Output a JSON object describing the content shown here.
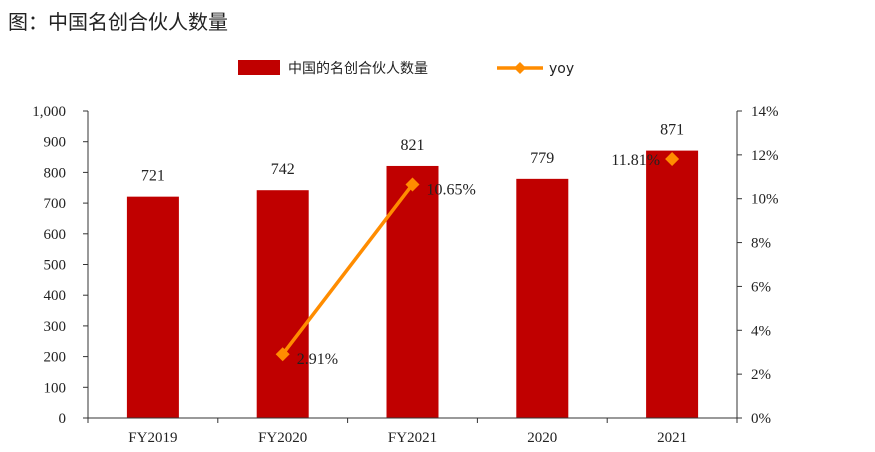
{
  "figure_title": "图：中国名创合伙人数量",
  "colors": {
    "bar": "#c00000",
    "line": "#ff8c00"
  },
  "chart_data": {
    "type": "bar",
    "title": "",
    "categories": [
      "FY2019",
      "FY2020",
      "FY2021",
      "2020",
      "2021"
    ],
    "series": [
      {
        "name": "中国的名创合伙人数量",
        "type": "bar",
        "axis": "left",
        "values": [
          721,
          742,
          821,
          779,
          871
        ],
        "labels": [
          "721",
          "742",
          "821",
          "779",
          "871"
        ]
      },
      {
        "name": "yoy",
        "type": "line",
        "axis": "right",
        "values": [
          null,
          2.91,
          10.65,
          null,
          11.81
        ],
        "labels": [
          "",
          "2.91%",
          "10.65%",
          "",
          "11.81%"
        ]
      }
    ],
    "left_axis": {
      "min": 0,
      "max": 1000,
      "ticks": [
        "0",
        "100",
        "200",
        "300",
        "400",
        "500",
        "600",
        "700",
        "800",
        "900",
        "1,000"
      ]
    },
    "right_axis": {
      "min": 0,
      "max": 14,
      "ticks": [
        "0%",
        "2%",
        "4%",
        "6%",
        "8%",
        "10%",
        "12%",
        "14%"
      ]
    },
    "legend": {
      "position": "top-center"
    },
    "grid": false
  }
}
